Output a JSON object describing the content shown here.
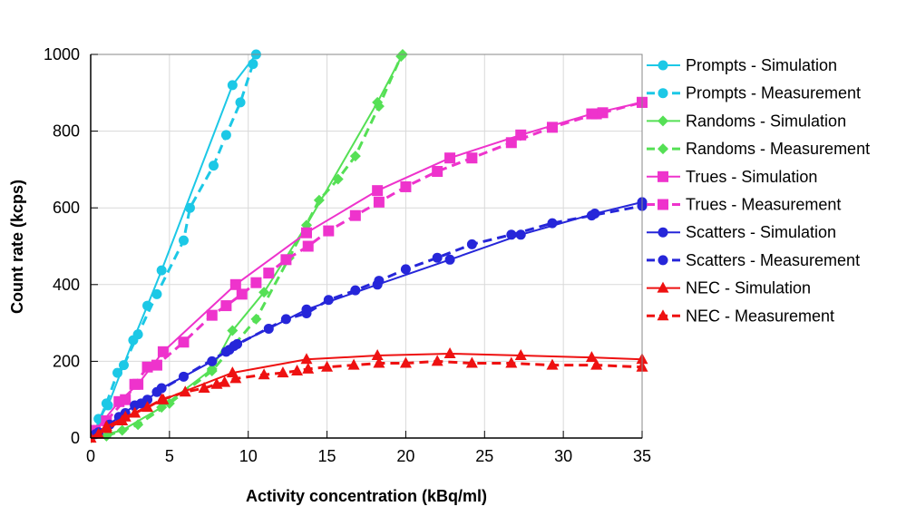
{
  "chart_data": {
    "type": "line",
    "xlabel": "Activity concentration (kBq/ml)",
    "ylabel": "Count rate (kcps)",
    "xlim": [
      0,
      35
    ],
    "ylim": [
      0,
      1000
    ],
    "xticks": [
      0,
      5,
      10,
      15,
      20,
      25,
      30,
      35
    ],
    "yticks": [
      0,
      200,
      400,
      600,
      800,
      1000
    ],
    "grid": true,
    "legend_position": "right",
    "series": [
      {
        "name": "Prompts - Simulation",
        "color": "#1CC8E6",
        "dash": false,
        "marker": "circle",
        "x": [
          0.5,
          1.1,
          2.7,
          3.6,
          4.5,
          9.0,
          10.5
        ],
        "y": [
          50,
          85,
          255,
          345,
          437,
          920,
          1000
        ]
      },
      {
        "name": "Prompts - Measurement",
        "color": "#1CC8E6",
        "dash": true,
        "marker": "circle",
        "x": [
          0.3,
          1.0,
          1.7,
          2.1,
          3.0,
          4.2,
          5.9,
          6.3,
          7.8,
          8.6,
          9.5,
          10.3
        ],
        "y": [
          20,
          90,
          170,
          190,
          270,
          375,
          515,
          600,
          710,
          790,
          875,
          975
        ]
      },
      {
        "name": "Randoms - Simulation",
        "color": "#55E055",
        "dash": false,
        "marker": "diamond",
        "x": [
          0,
          2,
          4.5,
          7.7,
          9,
          11,
          13.7,
          18.2,
          19.8
        ],
        "y": [
          0,
          20,
          80,
          180,
          280,
          380,
          555,
          875,
          1000
        ]
      },
      {
        "name": "Randoms - Measurement",
        "color": "#55E055",
        "dash": true,
        "marker": "diamond",
        "x": [
          1,
          3,
          5,
          7.7,
          10.5,
          12.6,
          14.5,
          15.7,
          16.8,
          18.3,
          19.7
        ],
        "y": [
          5,
          35,
          90,
          175,
          310,
          470,
          620,
          675,
          735,
          865,
          995
        ]
      },
      {
        "name": "Trues - Simulation",
        "color": "#EE33CC",
        "dash": false,
        "marker": "square",
        "x": [
          0.3,
          1.8,
          3.0,
          4.6,
          9.2,
          13.7,
          18.2,
          22.8,
          27.3,
          31.8,
          35
        ],
        "y": [
          20,
          95,
          140,
          225,
          400,
          535,
          645,
          730,
          790,
          845,
          875
        ]
      },
      {
        "name": "Trues - Measurement",
        "color": "#EE33CC",
        "dash": true,
        "marker": "square",
        "x": [
          1,
          2.2,
          2.8,
          3.6,
          4.2,
          5.9,
          7.7,
          8.6,
          9.6,
          10.5,
          11.3,
          12.4,
          13.8,
          15.1,
          16.8,
          18.3,
          20,
          22,
          24.2,
          26.7,
          29.3,
          32.1,
          32.5,
          35
        ],
        "y": [
          45,
          100,
          140,
          185,
          190,
          250,
          320,
          345,
          375,
          405,
          430,
          465,
          500,
          540,
          580,
          615,
          655,
          695,
          730,
          770,
          810,
          845,
          848,
          875
        ]
      },
      {
        "name": "Scatters - Simulation",
        "color": "#2626D9",
        "dash": false,
        "marker": "circle",
        "x": [
          0.5,
          1.8,
          2.8,
          3.6,
          4.5,
          5.9,
          7.7,
          8.8,
          9.3,
          11.3,
          13.7,
          18.2,
          22.8,
          27.3,
          32,
          35
        ],
        "y": [
          15,
          55,
          85,
          100,
          130,
          160,
          200,
          230,
          245,
          285,
          335,
          400,
          465,
          530,
          585,
          615
        ]
      },
      {
        "name": "Scatters - Measurement",
        "color": "#2626D9",
        "dash": true,
        "marker": "circle",
        "x": [
          0.3,
          1.2,
          2.2,
          3.2,
          4.2,
          8.6,
          9.1,
          12.4,
          13.7,
          15.1,
          16.8,
          18.3,
          20,
          22,
          24.2,
          26.7,
          29.3,
          31.8,
          35
        ],
        "y": [
          10,
          35,
          65,
          90,
          120,
          225,
          240,
          310,
          325,
          360,
          385,
          410,
          440,
          470,
          505,
          530,
          560,
          580,
          605
        ]
      },
      {
        "name": "NEC - Simulation",
        "color": "#EE1111",
        "dash": false,
        "marker": "triangle",
        "x": [
          0,
          1,
          2.2,
          4.6,
          9,
          13.7,
          18.2,
          22.8,
          27.3,
          31.8,
          35
        ],
        "y": [
          0,
          30,
          55,
          100,
          170,
          205,
          215,
          220,
          215,
          210,
          205
        ]
      },
      {
        "name": "NEC - Measurement",
        "color": "#EE1111",
        "dash": true,
        "marker": "triangle",
        "x": [
          0.5,
          1,
          2,
          2.8,
          3.6,
          4.5,
          6,
          7.2,
          8,
          8.5,
          9.2,
          11,
          12.2,
          13.1,
          13.8,
          15,
          16.7,
          18.3,
          20,
          22,
          24.2,
          26.7,
          29.3,
          32.1,
          35
        ],
        "y": [
          10,
          25,
          45,
          65,
          80,
          100,
          120,
          130,
          140,
          145,
          155,
          165,
          170,
          175,
          180,
          185,
          190,
          195,
          195,
          200,
          195,
          195,
          190,
          190,
          185
        ]
      }
    ]
  }
}
